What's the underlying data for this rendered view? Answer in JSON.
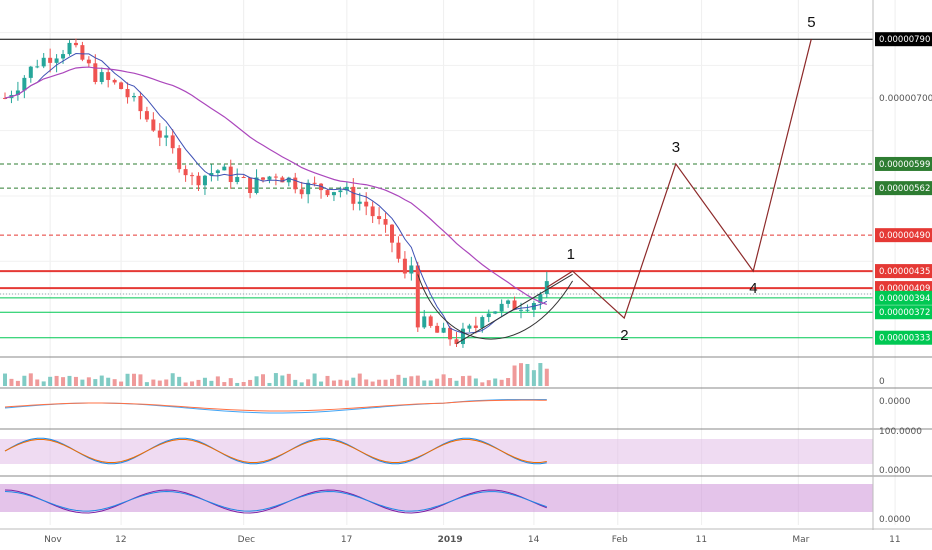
{
  "chart_data": {
    "type": "candlestick",
    "price_range": [
      3.05e-06,
      8.5e-06
    ],
    "price_levels": [
      {
        "value": 7.9e-06,
        "label": "0.00000790",
        "color": "#000000",
        "style": "solid"
      },
      {
        "value": 5.99e-06,
        "label": "0.00000599",
        "color": "#2e7d32",
        "style": "dashed"
      },
      {
        "value": 5.62e-06,
        "label": "0.00000562",
        "color": "#2e7d32",
        "style": "dashed"
      },
      {
        "value": 4.9e-06,
        "label": "0.00000490",
        "color": "#e53935",
        "style": "dashed"
      },
      {
        "value": 4.35e-06,
        "label": "0.00000435",
        "color": "#e53935",
        "style": "solid"
      },
      {
        "value": 4.09e-06,
        "label": "0.00000409",
        "color": "#e53935",
        "style": "solid"
      },
      {
        "value": 3.94e-06,
        "label": "0.00000394",
        "color": "#00c853",
        "style": "solid"
      },
      {
        "value": 3.72e-06,
        "label": "0.00000372",
        "color": "#00c853",
        "style": "solid"
      },
      {
        "value": 3.33e-06,
        "label": "0.00000333",
        "color": "#00c853",
        "style": "solid"
      }
    ],
    "axis_tick": {
      "value": 7e-06,
      "label": "0.00000700"
    },
    "x_ticks": [
      "Nov",
      "12",
      "Dec",
      "17",
      "2019",
      "14",
      "Feb",
      "11",
      "Mar",
      "11"
    ],
    "wave_points": [
      {
        "label": "1",
        "value": 4.35e-06
      },
      {
        "label": "2",
        "value": 3.63e-06
      },
      {
        "label": "3",
        "value": 5.99e-06
      },
      {
        "label": "4",
        "value": 4.35e-06
      },
      {
        "label": "5",
        "value": 7.9e-06
      }
    ],
    "panes": [
      {
        "name": "volume",
        "tick": "0"
      },
      {
        "name": "macd",
        "tick": "0.0000"
      },
      {
        "name": "stochastic",
        "ticks": [
          "100.0000",
          "0.0000"
        ]
      },
      {
        "name": "stoch-rsi",
        "tick": "0.0000"
      }
    ]
  }
}
